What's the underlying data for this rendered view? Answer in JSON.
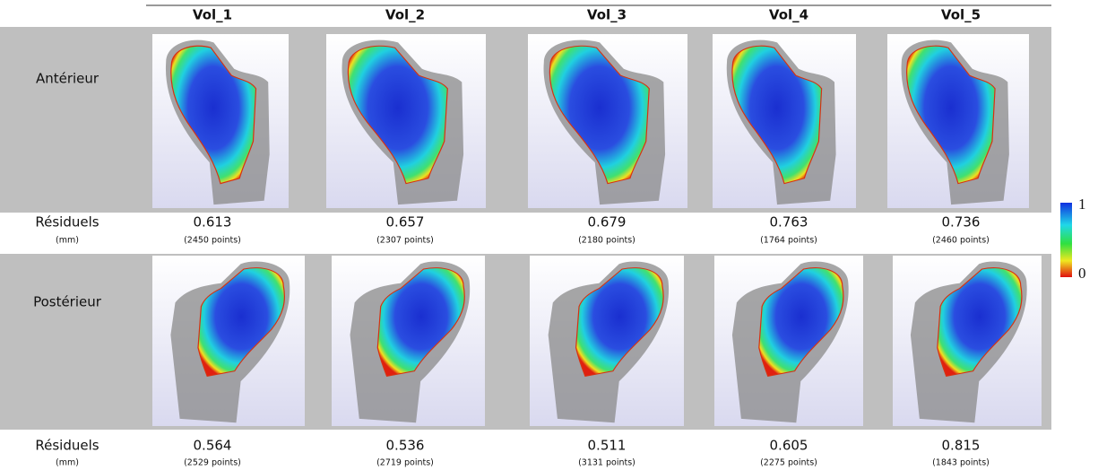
{
  "header": [
    "Vol_1",
    "Vol_2",
    "Vol_3",
    "Vol_4",
    "Vol_5"
  ],
  "views": [
    {
      "label": "Antérieur",
      "residuals_label": "Résiduels",
      "unit": "(mm)",
      "values": [
        0.613,
        0.657,
        0.679,
        0.763,
        0.736
      ],
      "points": [
        "(2450 points)",
        "(2307 points)",
        "(2180 points)",
        "(1764 points)",
        "(2460 points)"
      ]
    },
    {
      "label": "Postérieur",
      "residuals_label": "Résiduels",
      "unit": "(mm)",
      "values": [
        0.564,
        0.536,
        0.511,
        0.605,
        0.815
      ],
      "points": [
        "(2529 points)",
        "(2719 points)",
        "(3131 points)",
        "(2275 points)",
        "(1843 points)"
      ]
    }
  ],
  "scale": {
    "max": "1",
    "min": "0"
  }
}
